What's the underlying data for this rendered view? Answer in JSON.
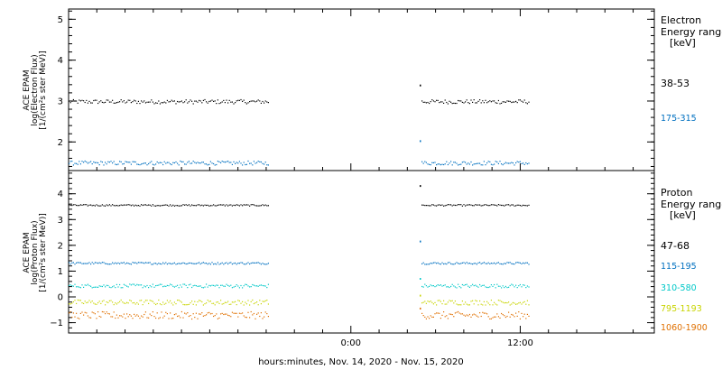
{
  "chart_data": [
    {
      "type": "scatter",
      "panel": "electron",
      "ylabel_lines": [
        "ACE EPAM",
        "log(Electron Flux)",
        "[1/(cm²s ster MeV)]"
      ],
      "y_ticks": [
        "2",
        "3",
        "4",
        "5"
      ],
      "ylim": [
        1.3,
        5.25
      ],
      "legend_title": [
        "Electron",
        "Energy ranges",
        "[keV]"
      ],
      "series": [
        {
          "name": "38-53",
          "color": "#000000",
          "level": 2.98,
          "spread": 0.05,
          "spike": 3.38
        },
        {
          "name": "175-315",
          "color": "#0070c0",
          "level": 1.48,
          "spread": 0.05,
          "spike": 2.02
        }
      ]
    },
    {
      "type": "scatter",
      "panel": "proton",
      "ylabel_lines": [
        "ACE EPAM",
        "log(Proton Flux)",
        "[1/(cm²s ster MeV)]"
      ],
      "y_ticks": [
        "−1",
        "0",
        "1",
        "2",
        "3",
        "4"
      ],
      "ylim": [
        -1.4,
        4.9
      ],
      "legend_title": [
        "Proton",
        "Energy ranges",
        "[keV]"
      ],
      "series": [
        {
          "name": "47-68",
          "color": "#000000",
          "level": 3.55,
          "spread": 0.03,
          "spike": 4.3
        },
        {
          "name": "115-195",
          "color": "#0070c0",
          "level": 1.3,
          "spread": 0.04,
          "spike": 2.15
        },
        {
          "name": "310-580",
          "color": "#00c8c8",
          "level": 0.42,
          "spread": 0.07,
          "spike": 0.7
        },
        {
          "name": "795-1193",
          "color": "#c8d400",
          "level": -0.22,
          "spread": 0.1,
          "spike": 0.05
        },
        {
          "name": "1060-1900",
          "color": "#e07000",
          "level": -0.72,
          "spread": 0.14,
          "spike": -0.45
        }
      ]
    }
  ],
  "x_axis": {
    "label": "hours:minutes, Nov. 14, 2020 - Nov. 15, 2020",
    "tick_labels": [
      "0:00",
      "12:00"
    ],
    "range_hours": [
      -20,
      21.5
    ],
    "major_ticks_hours": [
      0,
      12
    ],
    "minor_step_hours": 2,
    "data_segments_hours": [
      [
        -20,
        -5.8
      ],
      [
        5,
        12.6
      ]
    ]
  }
}
